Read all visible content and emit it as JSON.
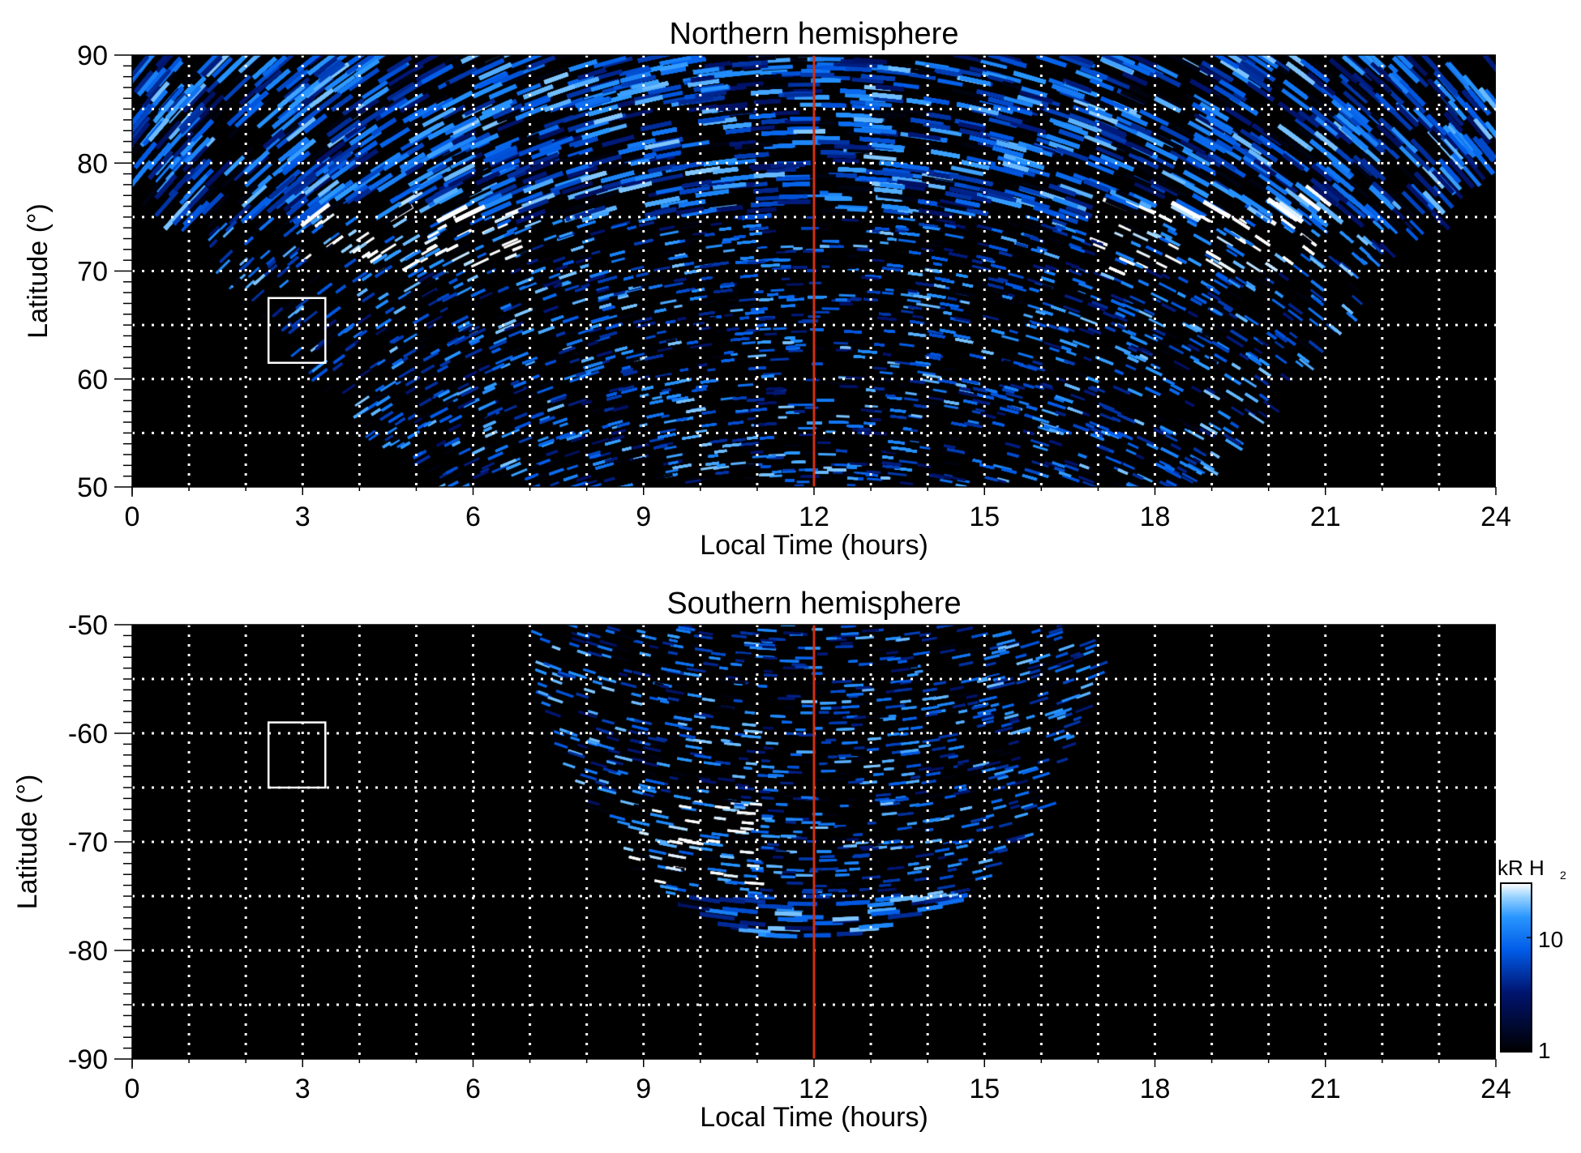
{
  "chart_data": [
    {
      "type": "heatmap",
      "title": "Northern hemisphere",
      "xlabel": "Local Time (hours)",
      "ylabel": "Latitude (°)",
      "xlim": [
        0,
        24
      ],
      "ylim": [
        50,
        90
      ],
      "xticks": [
        "0",
        "3",
        "6",
        "9",
        "12",
        "15",
        "18",
        "21",
        "24"
      ],
      "yticks": [
        "50",
        "60",
        "70",
        "80",
        "90"
      ],
      "grid": true,
      "reference_line_lt": 12,
      "reference_box": {
        "lt": [
          2.4,
          3.4
        ],
        "lat": [
          61.5,
          67.5
        ]
      },
      "emission_region": "latitudes 80–90 across all local times; toward 50° narrows to LT 5–18.7"
    },
    {
      "type": "heatmap",
      "title": "Southern hemisphere",
      "xlabel": "Local Time (hours)",
      "ylabel": "Latitude (°)",
      "xlim": [
        0,
        24
      ],
      "ylim": [
        -90,
        -50
      ],
      "xticks": [
        "0",
        "3",
        "6",
        "9",
        "12",
        "15",
        "18",
        "21",
        "24"
      ],
      "yticks": [
        "-90",
        "-80",
        "-70",
        "-60",
        "-50"
      ],
      "grid": true,
      "reference_line_lt": 12,
      "reference_box": {
        "lt": [
          2.4,
          3.4
        ],
        "lat": [
          -65,
          -59
        ]
      },
      "emission_region": "LT 7–17 at -50°, narrowing to LT 11–13.5 near -78°"
    }
  ],
  "colorbar": {
    "label_main": "kR H",
    "label_sub": "2",
    "ticks": [
      "1",
      "10"
    ],
    "range": [
      1,
      30
    ],
    "scale": "log"
  },
  "colors": {
    "line": "#d03010",
    "box": "#ffffff",
    "background": "#000000"
  }
}
